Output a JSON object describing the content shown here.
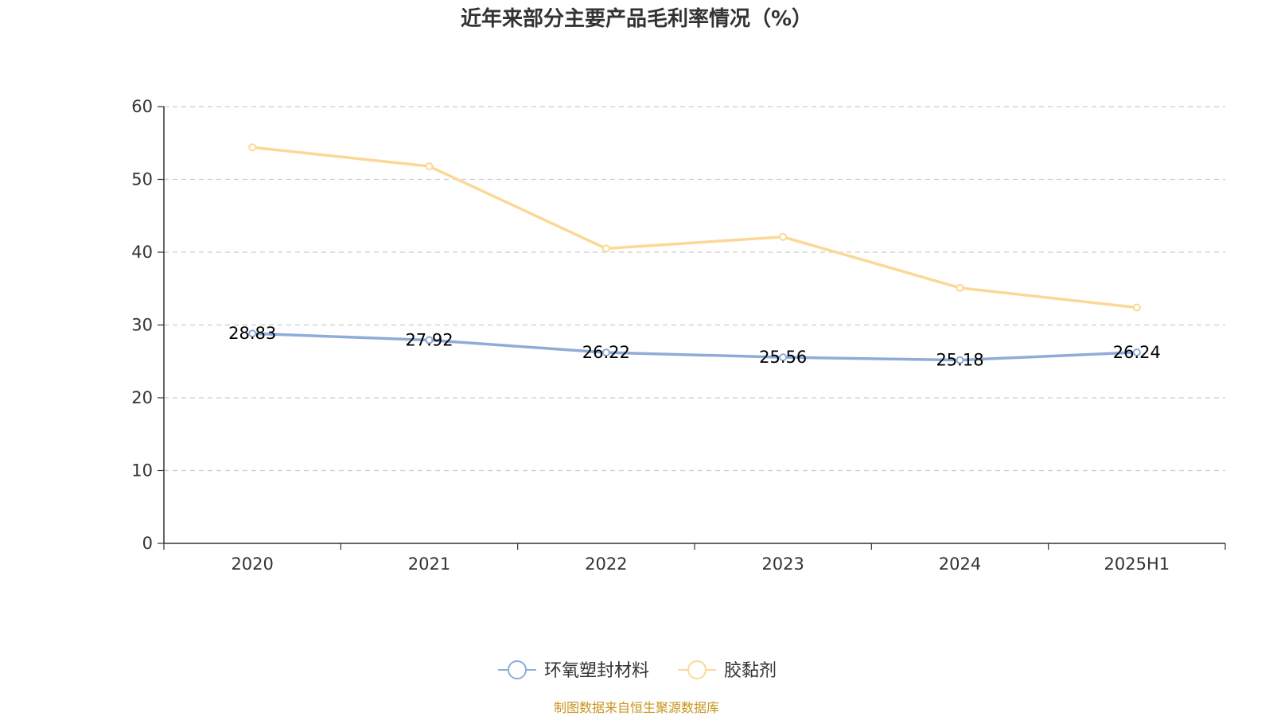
{
  "chart_data": {
    "type": "line",
    "title": "近年来部分主要产品毛利率情况（%）",
    "categories": [
      "2020",
      "2021",
      "2022",
      "2023",
      "2024",
      "2025H1"
    ],
    "ylim": [
      0,
      60
    ],
    "yticks": [
      0,
      10,
      20,
      30,
      40,
      50,
      60
    ],
    "grid": true,
    "legend_position": "bottom",
    "series": [
      {
        "name": "环氧塑封材料",
        "values": [
          28.83,
          27.92,
          26.22,
          25.56,
          25.18,
          26.24
        ],
        "labels": [
          "28.83",
          "27.92",
          "26.22",
          "25.56",
          "25.18",
          "26.24"
        ],
        "color": "#8eacd8"
      },
      {
        "name": "胶黏剂",
        "values": [
          54.4,
          51.8,
          40.5,
          42.1,
          35.1,
          32.4
        ],
        "color": "#fbd896"
      }
    ],
    "source": "制图数据来自恒生聚源数据库"
  }
}
